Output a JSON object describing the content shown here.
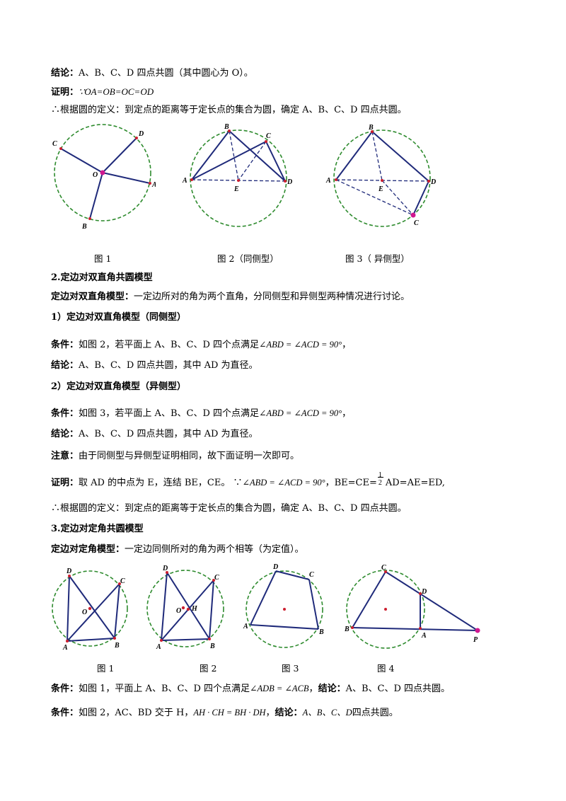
{
  "sec1": {
    "conclusion_label": "结论：",
    "conclusion_text": "A、B、C、D 四点共圆（其中圆心为 O）。",
    "proof_label": "证明：",
    "proof_text": "∵OA=OB=OC=OD",
    "therefore_text": "∴根据圆的定义：到定点的距离等于定长点的集合为圆，确定 A、B、C、D 四点共圆。",
    "captions": [
      "图 1",
      "图 2（同侧型）",
      "图 3（ 异侧型）"
    ]
  },
  "sec2": {
    "heading": "2.定边对双直角共圆模型",
    "def_label": "定边对双直角模型：",
    "def_text": "一定边所对的角为两个直角，分同侧型和异侧型两种情况进行讨论。",
    "sub1_heading": "1）定边对双直角模型（同侧型）",
    "cond1_label": "条件：",
    "cond1_text": "如图 2，若平面上 A、B、C、D 四个点满足",
    "cond1_math": "∠ABD = ∠ACD = 90°",
    "cond1_end": "，",
    "concl1_label": "结论：",
    "concl1_text": "A、B、C、D 四点共圆，其中 AD 为直径。",
    "sub2_heading": "2）定边对双直角模型（异侧型）",
    "cond2_label": "条件：",
    "cond2_text": "如图 3，若平面上 A、B、C、D 四个点满足",
    "cond2_math": "∠ABD = ∠ACD = 90°",
    "cond2_end": "，",
    "concl2_label": "结论：",
    "concl2_text": "A、B、C、D 四点共圆，其中 AD 为直径。",
    "note_label": "注意：",
    "note_text": "由于同侧型与异侧型证明相同，故下面证明一次即可。",
    "proof_label": "证明：",
    "proof_text": "取 AD 的中点为 E，连结 BE，CE。 ∵",
    "proof_math": "∠ABD = ∠ACD = 90°",
    "proof_eq_left": "，BE=CE=",
    "frac_num": "1",
    "frac_den": "2",
    "proof_eq_right": "AD=AE=ED,",
    "therefore_text": "∴根据圆的定义：到定点的距离等于定长点的集合为圆，确定 A、B、C、D 四点共圆。"
  },
  "sec3": {
    "heading": "3.定边对定角共圆模型",
    "def_label": "定边对定角模型：",
    "def_text": "一定边同侧所对的角为两个相等（为定值）。",
    "captions": [
      "图 1",
      "图 2",
      "图 3",
      "图 4"
    ],
    "cond1_label": "条件：",
    "cond1_text": "如图 1，平面上 A、B、C、D 四个点满足",
    "cond1_math": "∠ADB = ∠ACB",
    "cond1_sep": "，",
    "concl1_label": "结论：",
    "concl1_text": "A、B、C、D 四点共圆。",
    "cond2_label": "条件：",
    "cond2_text": "如图 2，AC、BD 交于 H，",
    "cond2_math": "AH · CH = BH · DH",
    "cond2_sep": "，",
    "concl2_label": "结论：",
    "concl2_math": "A、B、C、D",
    "concl2_text": "四点共圆。"
  },
  "figure_labels": {
    "top_fig1": [
      "C",
      "D",
      "O",
      "A",
      "B"
    ],
    "top_fig2": [
      "B",
      "C",
      "A",
      "E",
      "D"
    ],
    "top_fig3": [
      "B",
      "A",
      "E",
      "D",
      "C"
    ],
    "bot_fig1": [
      "D",
      "C",
      "O",
      "A",
      "B"
    ],
    "bot_fig2": [
      "D",
      "C",
      "O",
      "H",
      "A",
      "B"
    ],
    "bot_fig3": [
      "D",
      "C",
      "A",
      "B"
    ],
    "bot_fig4": [
      "C",
      "D",
      "B",
      "A",
      "P"
    ]
  },
  "colors": {
    "circle": "#2e8b2e",
    "segment": "#1f2a7a",
    "point": "#cc1f2f",
    "center": "#d01890"
  }
}
